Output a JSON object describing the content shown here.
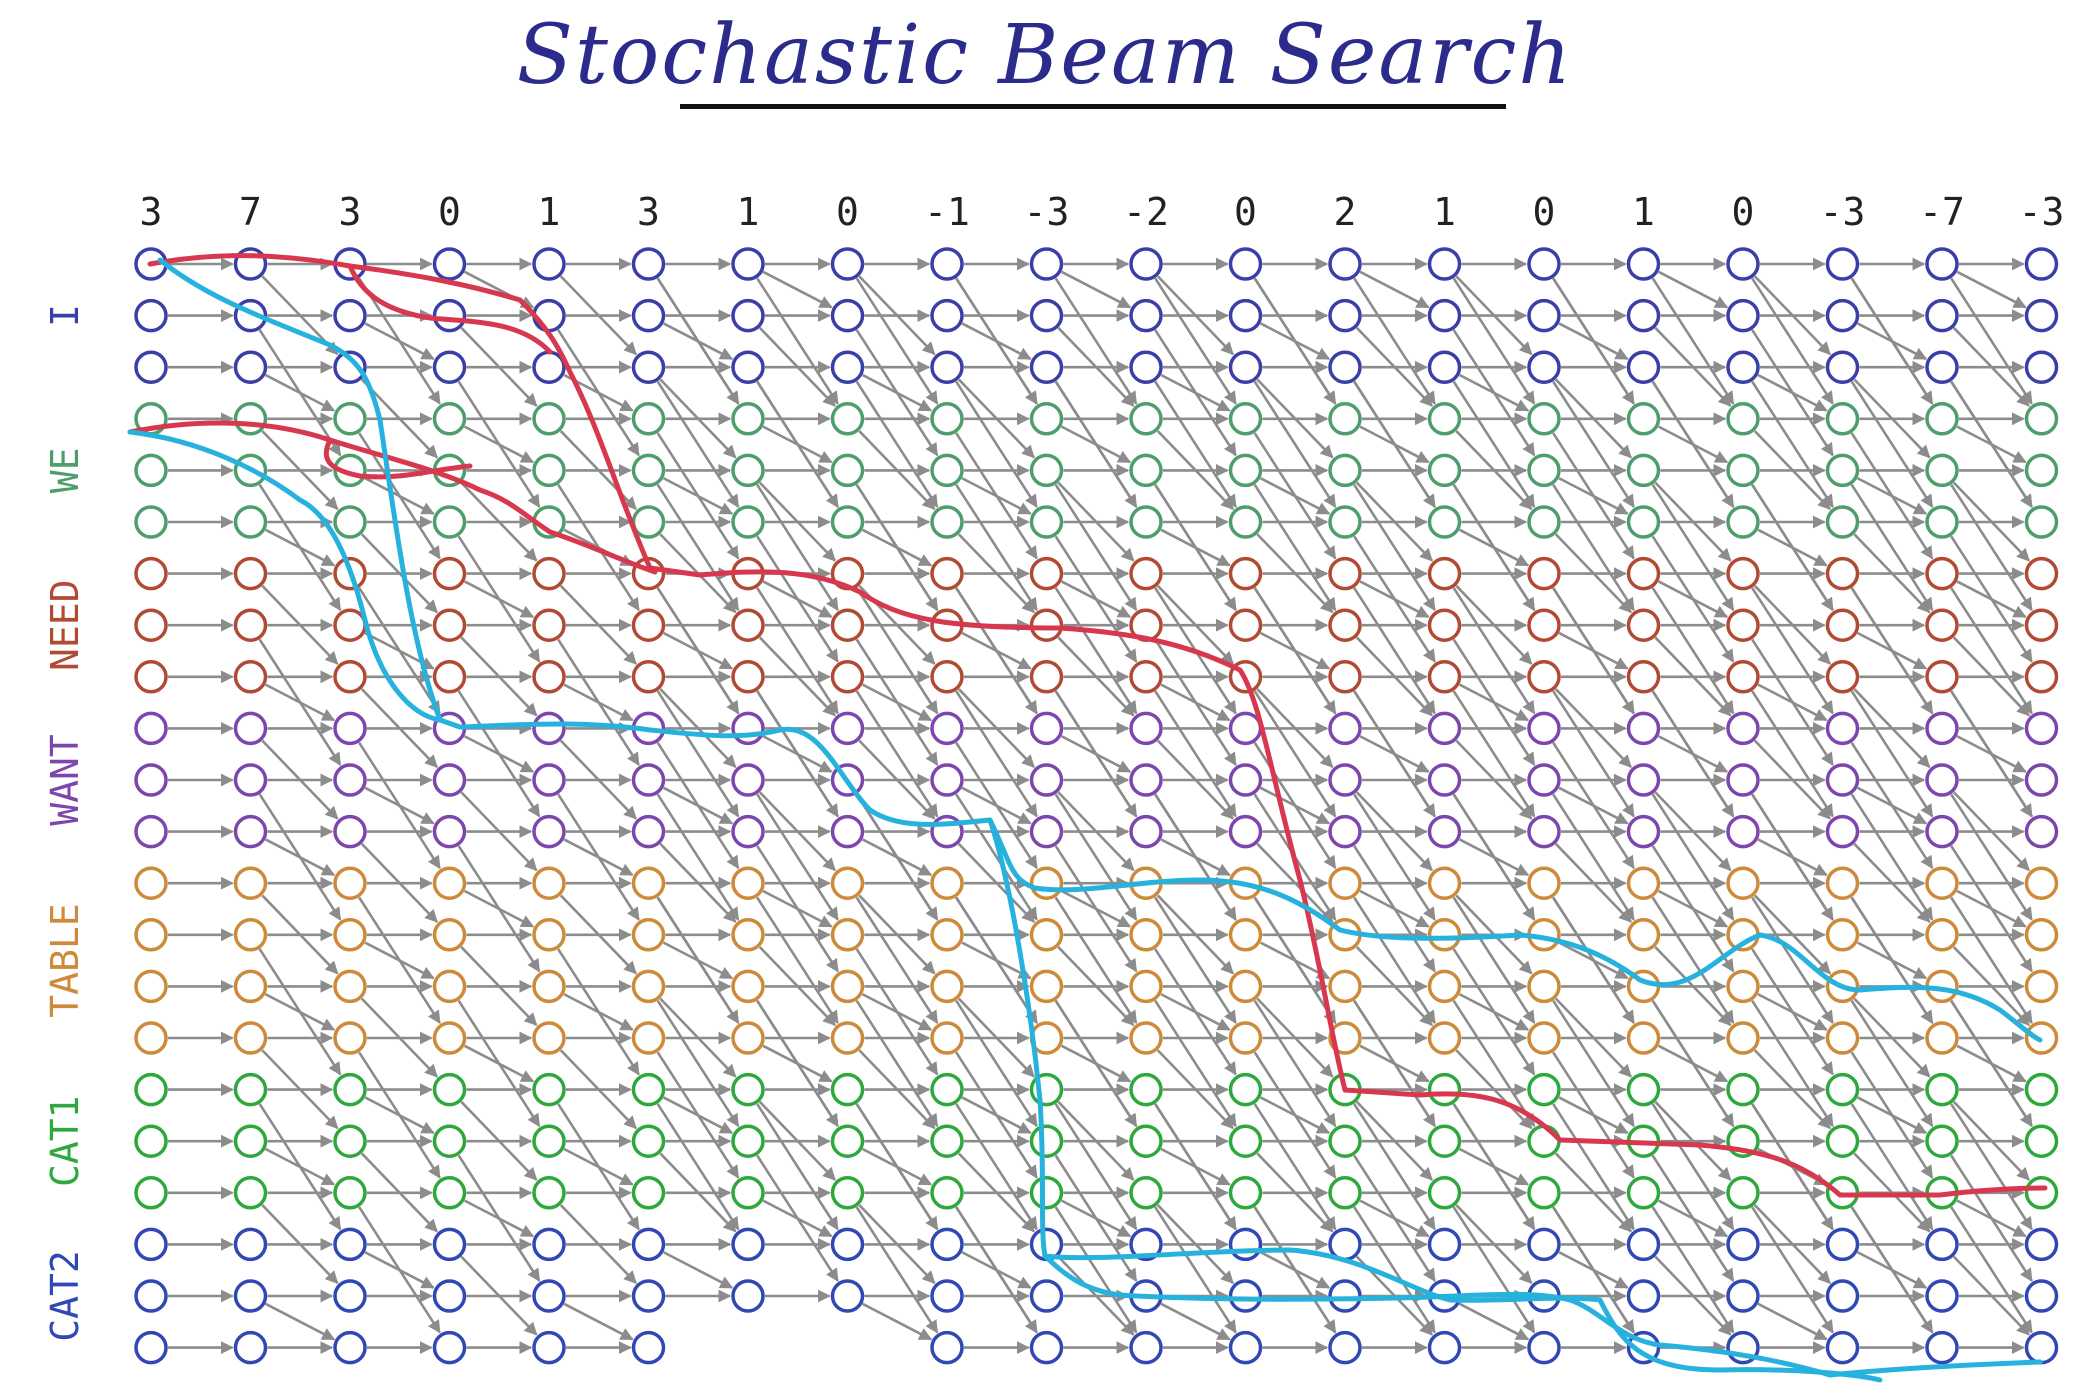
{
  "title": "Stochastic Beam Search",
  "scores": [
    "3",
    "7",
    "3",
    "0",
    "1",
    "3",
    "1",
    "0",
    "-1",
    "-3",
    "-2",
    "0",
    "2",
    "1",
    "0",
    "1",
    "0",
    "-3",
    "-7",
    "-3"
  ],
  "groups": [
    {
      "label": "I",
      "color": "#3a3fa8",
      "rows": 3
    },
    {
      "label": "WE",
      "color": "#4e9e6c",
      "rows": 3
    },
    {
      "label": "NEED",
      "color": "#b04a32",
      "rows": 3
    },
    {
      "label": "WANT",
      "color": "#7d46ad",
      "rows": 3
    },
    {
      "label": "TABLE",
      "color": "#cc8a3a",
      "rows": 4
    },
    {
      "label": "CAT1",
      "color": "#2ea83c",
      "rows": 3
    },
    {
      "label": "CAT2",
      "color": "#3048b3",
      "rows": 3
    }
  ],
  "column_heights": [
    22,
    22,
    22,
    22,
    22,
    22,
    21,
    21,
    22,
    22,
    22,
    22,
    22,
    22,
    22,
    22,
    22,
    22,
    22,
    22
  ],
  "colors": {
    "arrow": "#8c8c8c",
    "beam_red": "#d8384e",
    "beam_blue": "#27b2de"
  }
}
